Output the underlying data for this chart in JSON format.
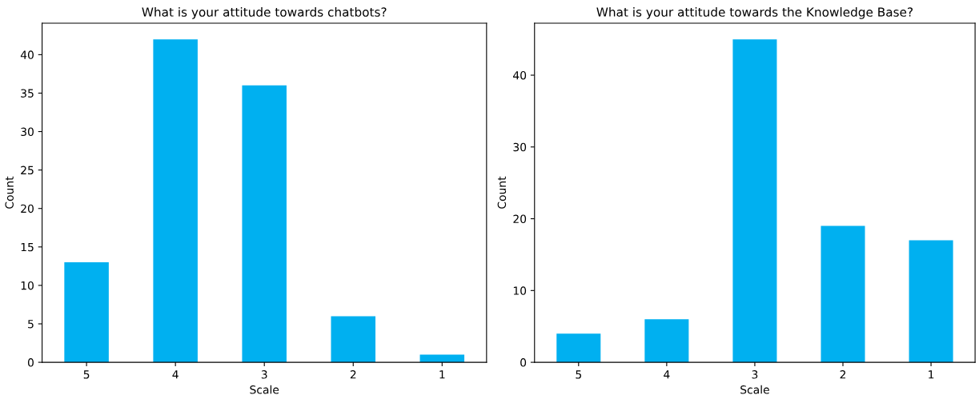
{
  "chart_data": [
    {
      "type": "bar",
      "title": "What is your attitude towards chatbots?",
      "xlabel": "Scale",
      "ylabel": "Count",
      "categories": [
        "5",
        "4",
        "3",
        "2",
        "1"
      ],
      "values": [
        13,
        42,
        36,
        6,
        1
      ],
      "color": "#00b0f0",
      "ylim": [
        0,
        44.1
      ],
      "yticks": [
        0,
        5,
        10,
        15,
        20,
        25,
        30,
        35,
        40
      ],
      "grid": false,
      "legend": false
    },
    {
      "type": "bar",
      "title": "What is your attitude towards the Knowledge Base?",
      "xlabel": "Scale",
      "ylabel": "Count",
      "categories": [
        "5",
        "4",
        "3",
        "2",
        "1"
      ],
      "values": [
        4,
        6,
        45,
        19,
        17
      ],
      "color": "#00b0f0",
      "ylim": [
        0,
        47.25
      ],
      "yticks": [
        0,
        10,
        20,
        30,
        40
      ],
      "grid": false,
      "legend": false
    }
  ]
}
